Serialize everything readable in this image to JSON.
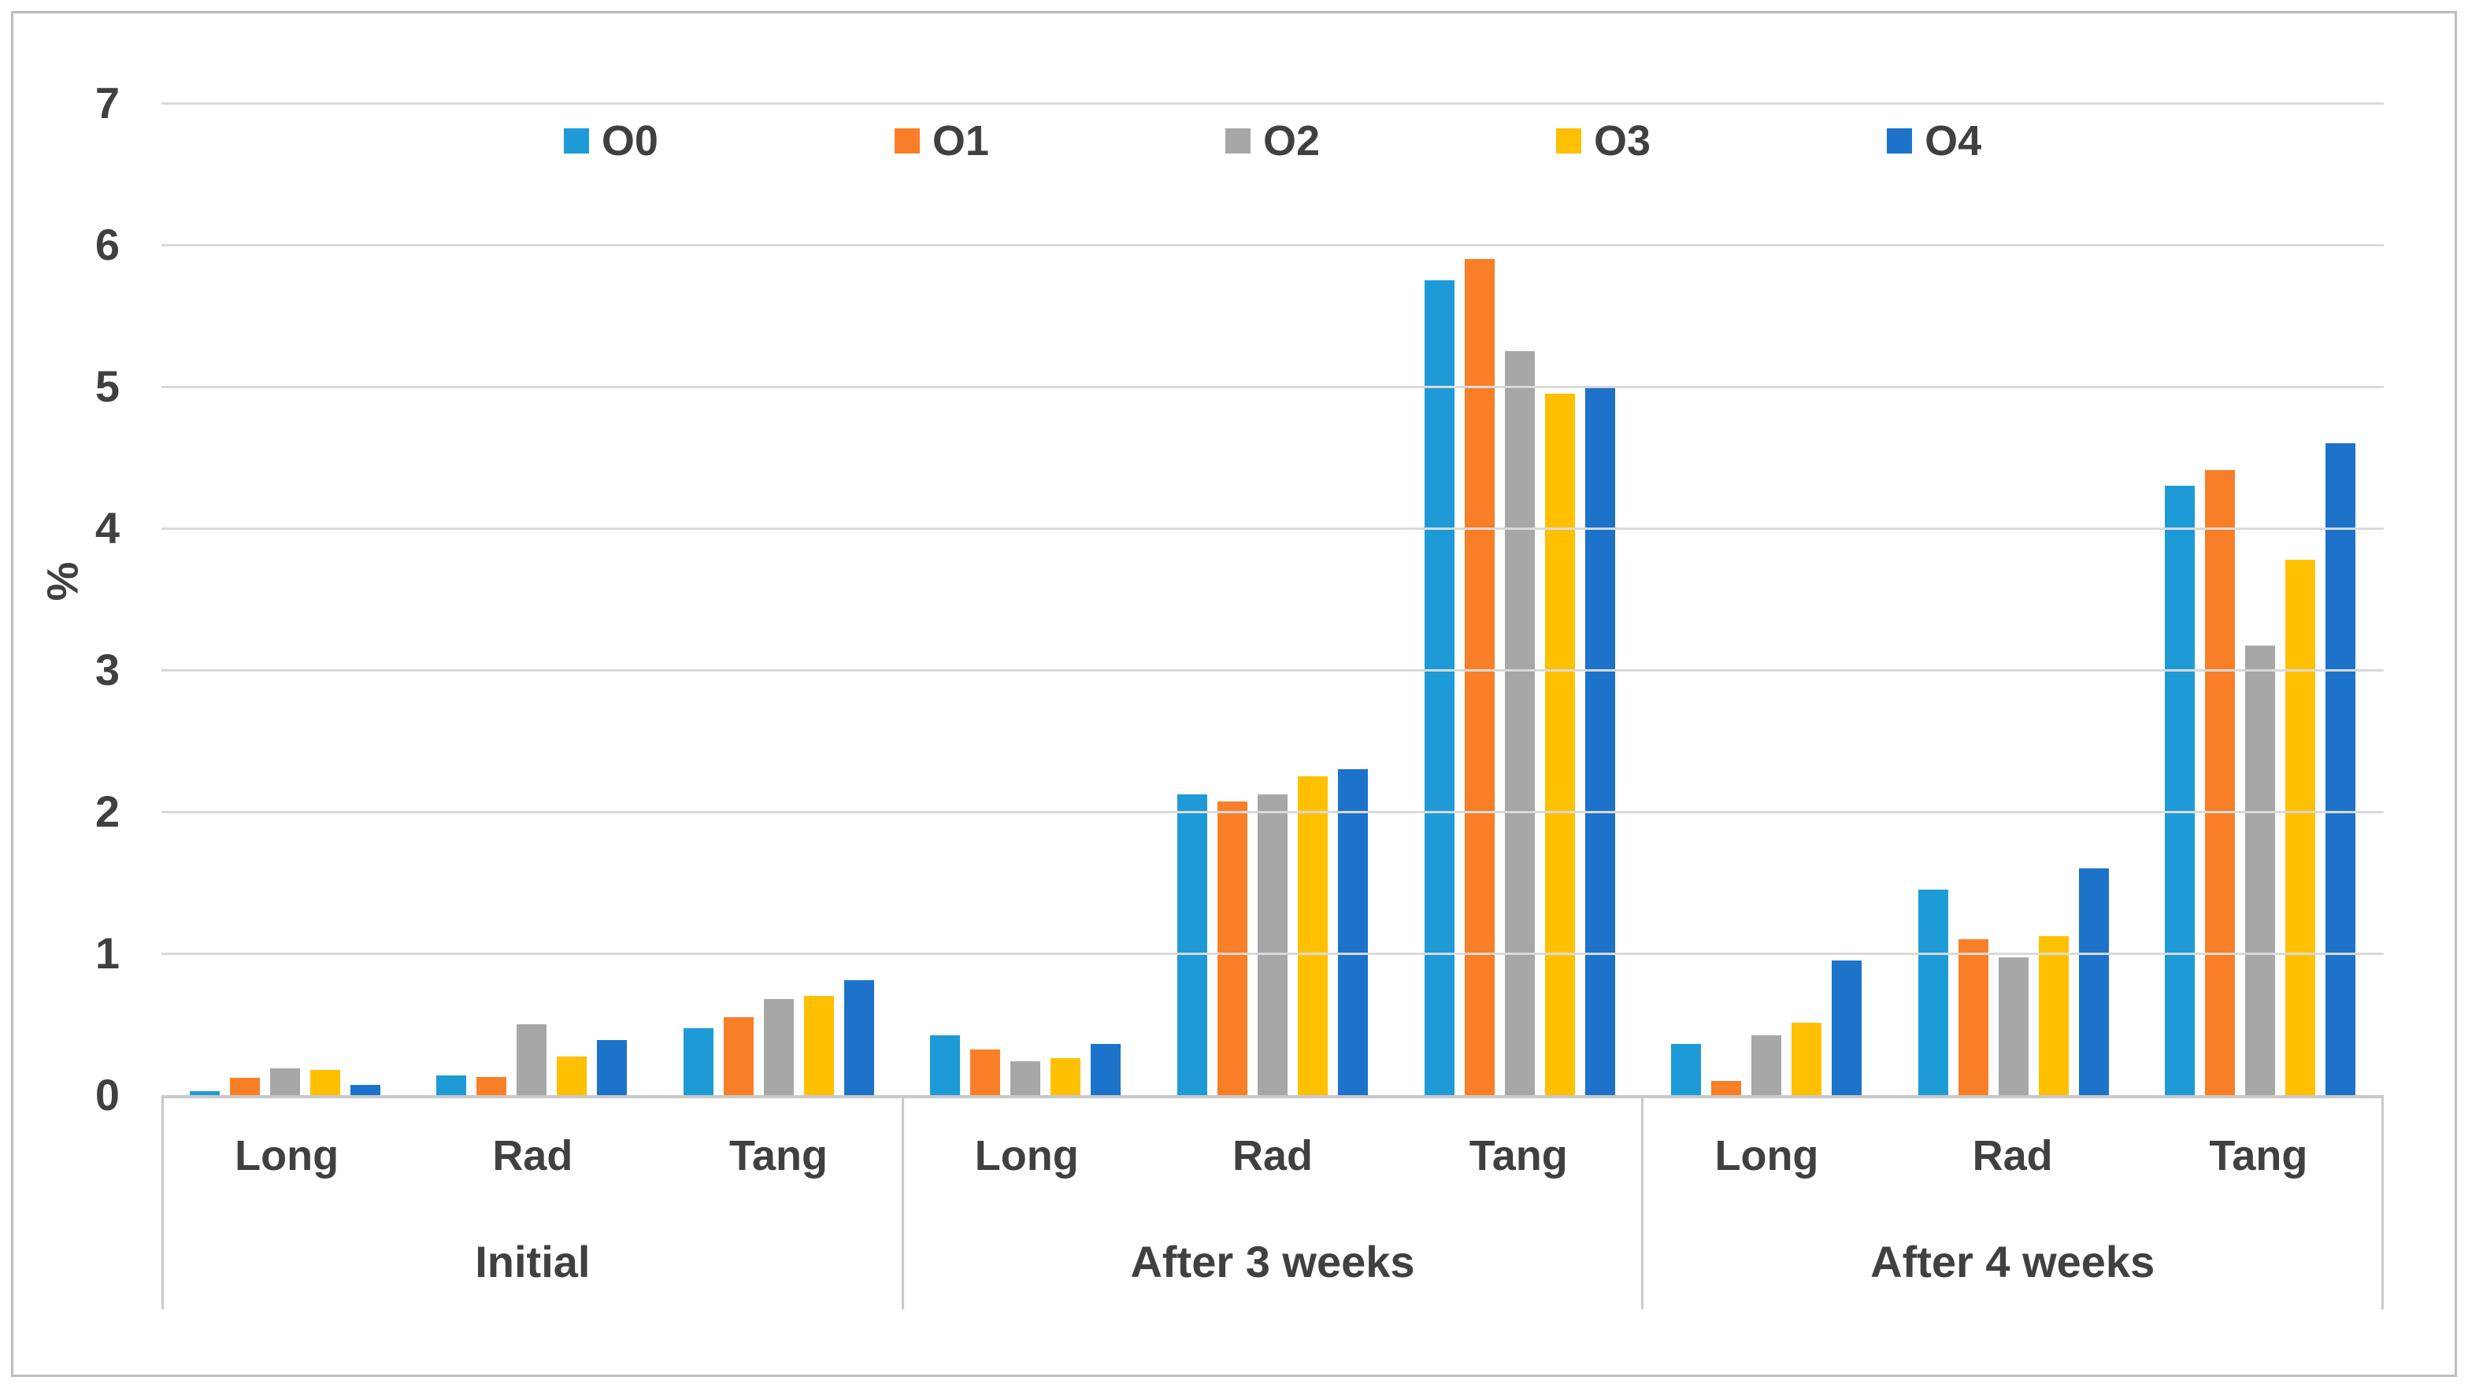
{
  "figure": {
    "background": "#FFFFFF",
    "border_color": "#BDBDBD",
    "text_color": "#404040",
    "gridline_color": "#D9D9D9",
    "axis_line_color": "#C9C9C9"
  },
  "chart_data": {
    "type": "bar",
    "title": "",
    "xlabel": "",
    "ylabel": "%",
    "ylim": [
      0,
      7
    ],
    "yticks": [
      0,
      1,
      2,
      3,
      4,
      5,
      6,
      7
    ],
    "grid": true,
    "legend_position": "top-center",
    "group_labels": [
      "Initial",
      "After 3 weeks",
      "After 4 weeks"
    ],
    "categories_per_group": [
      "Long",
      "Rad",
      "Tang"
    ],
    "categories_full": [
      "Initial Long",
      "Initial Rad",
      "Initial Tang",
      "After 3 weeks Long",
      "After 3 weeks Rad",
      "After 3 weeks Tang",
      "After 4 weeks Long",
      "After 4 weeks Rad",
      "After 4 weeks Tang"
    ],
    "series": [
      {
        "name": "O0",
        "color": "#1E9BD7",
        "values": [
          0.03,
          0.14,
          0.47,
          0.42,
          2.12,
          5.75,
          0.36,
          1.45,
          4.3
        ]
      },
      {
        "name": "O1",
        "color": "#F87F27",
        "values": [
          0.12,
          0.13,
          0.55,
          0.32,
          2.07,
          5.9,
          0.1,
          1.1,
          4.41
        ]
      },
      {
        "name": "O2",
        "color": "#A7A7A7",
        "values": [
          0.19,
          0.5,
          0.68,
          0.24,
          2.12,
          5.25,
          0.42,
          0.97,
          3.17
        ]
      },
      {
        "name": "O3",
        "color": "#FFC001",
        "values": [
          0.18,
          0.27,
          0.7,
          0.26,
          2.25,
          4.95,
          0.51,
          1.12,
          3.78
        ]
      },
      {
        "name": "O4",
        "color": "#1C73C9",
        "values": [
          0.07,
          0.39,
          0.81,
          0.36,
          2.3,
          5.0,
          0.95,
          1.6,
          4.6
        ]
      }
    ]
  }
}
